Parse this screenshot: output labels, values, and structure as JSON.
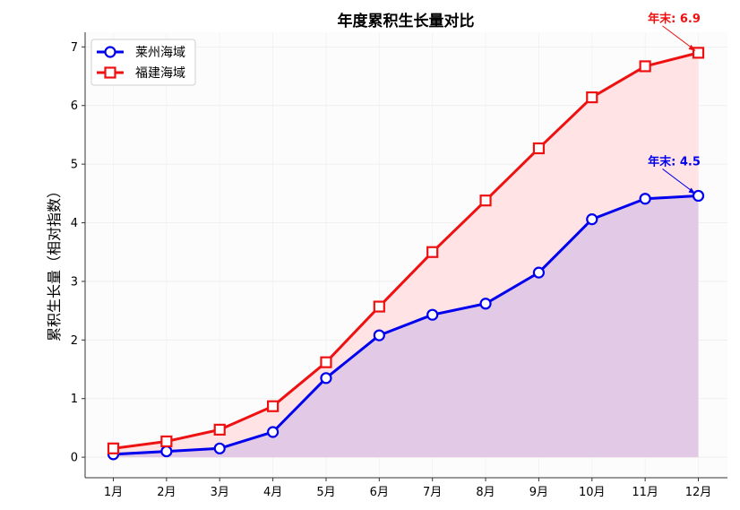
{
  "chart_data": {
    "type": "line",
    "title": "年度累积生长量对比",
    "xlabel": "",
    "ylabel": "累积生长量（相对指数）",
    "categories": [
      "1月",
      "2月",
      "3月",
      "4月",
      "5月",
      "6月",
      "7月",
      "8月",
      "9月",
      "10月",
      "11月",
      "12月"
    ],
    "ylim": [
      -0.35,
      7.25
    ],
    "yticks": [
      0,
      1,
      2,
      3,
      4,
      5,
      6,
      7
    ],
    "grid": true,
    "legend_position": "top-left",
    "series": [
      {
        "name": "莱州海域",
        "marker": "circle",
        "color": "#0000ee",
        "fill": "#e0c8e6",
        "values": [
          0.05,
          0.1,
          0.15,
          0.43,
          1.35,
          2.08,
          2.43,
          2.62,
          3.15,
          4.06,
          4.41,
          4.46
        ]
      },
      {
        "name": "福建海域",
        "marker": "square",
        "color": "#ee1111",
        "fill": "#ffe2e4",
        "values": [
          0.15,
          0.27,
          0.47,
          0.87,
          1.62,
          2.57,
          3.5,
          4.38,
          5.27,
          6.14,
          6.67,
          6.9
        ]
      }
    ],
    "annotations": [
      {
        "text": "年末: 6.9",
        "series": 1,
        "index": 11,
        "color": "#ee1111"
      },
      {
        "text": "年末: 4.5",
        "series": 0,
        "index": 11,
        "color": "#0000ee"
      }
    ]
  }
}
